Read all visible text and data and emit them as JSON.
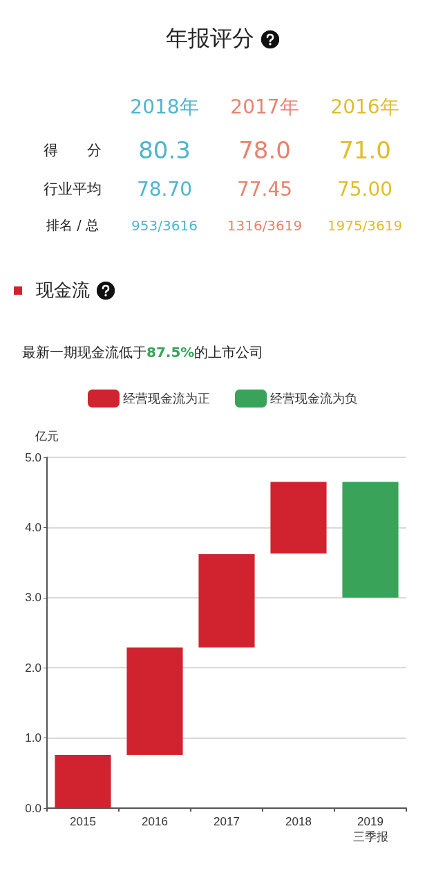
{
  "chart_data": [
    {
      "type": "other",
      "title": "年报评分",
      "categories": [
        "2018年",
        "2017年",
        "2016年"
      ],
      "y_categories": [
        "得　　分",
        "行业平均",
        "排名 / 总"
      ],
      "cell_labels": [
        [
          "80.3",
          "78.0",
          "71.0"
        ],
        [
          "78.70",
          "77.45",
          "75.00"
        ],
        [
          "953/3616",
          "1316/3619",
          "1975/3619"
        ]
      ],
      "colors": [
        "#4db6cb",
        "#e8836f",
        "#e0bd2c"
      ]
    },
    {
      "type": "bar",
      "title": "现金流",
      "subtitle": "最新一期现金流低于87.5%的上市公司",
      "ylabel": "亿元",
      "categories": [
        "2015",
        "2016",
        "2017",
        "2018",
        "2019\n三季报"
      ],
      "series": [
        {
          "name": "经营现金流为正",
          "color": "#d0232f",
          "values": [
            0.76,
            1.53,
            1.33,
            1.02,
            null
          ],
          "base": [
            0,
            0.76,
            2.29,
            3.63,
            null
          ]
        },
        {
          "name": "经营现金流为负",
          "color": "#3aa35a",
          "values": [
            null,
            null,
            null,
            null,
            -1.65
          ],
          "base": [
            null,
            null,
            null,
            null,
            4.65
          ]
        }
      ],
      "ylim": [
        0,
        5
      ],
      "yticks": [
        {
          "value": 0,
          "label": "0.0"
        },
        {
          "value": 1,
          "label": "1.0"
        },
        {
          "value": 2,
          "label": "2.0"
        },
        {
          "value": 3,
          "label": "3.0"
        },
        {
          "value": 4,
          "label": "4.0"
        },
        {
          "value": 5,
          "label": "5.0"
        }
      ],
      "grid": "y",
      "legend": "top"
    }
  ]
}
